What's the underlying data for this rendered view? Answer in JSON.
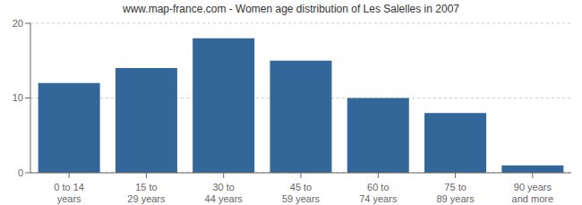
{
  "chart_data": {
    "type": "bar",
    "title": "www.map-france.com - Women age distribution of Les Salelles in 2007",
    "categories": [
      "0 to 14 years",
      "15 to 29 years",
      "30 to 44 years",
      "45 to 59 years",
      "60 to 74 years",
      "75 to 89 years",
      "90 years and more"
    ],
    "values": [
      12,
      14,
      18,
      15,
      10,
      8,
      1
    ],
    "color": "#336699",
    "ylim": [
      0,
      20
    ],
    "yticks": [
      0,
      10,
      20
    ],
    "grid": true
  }
}
